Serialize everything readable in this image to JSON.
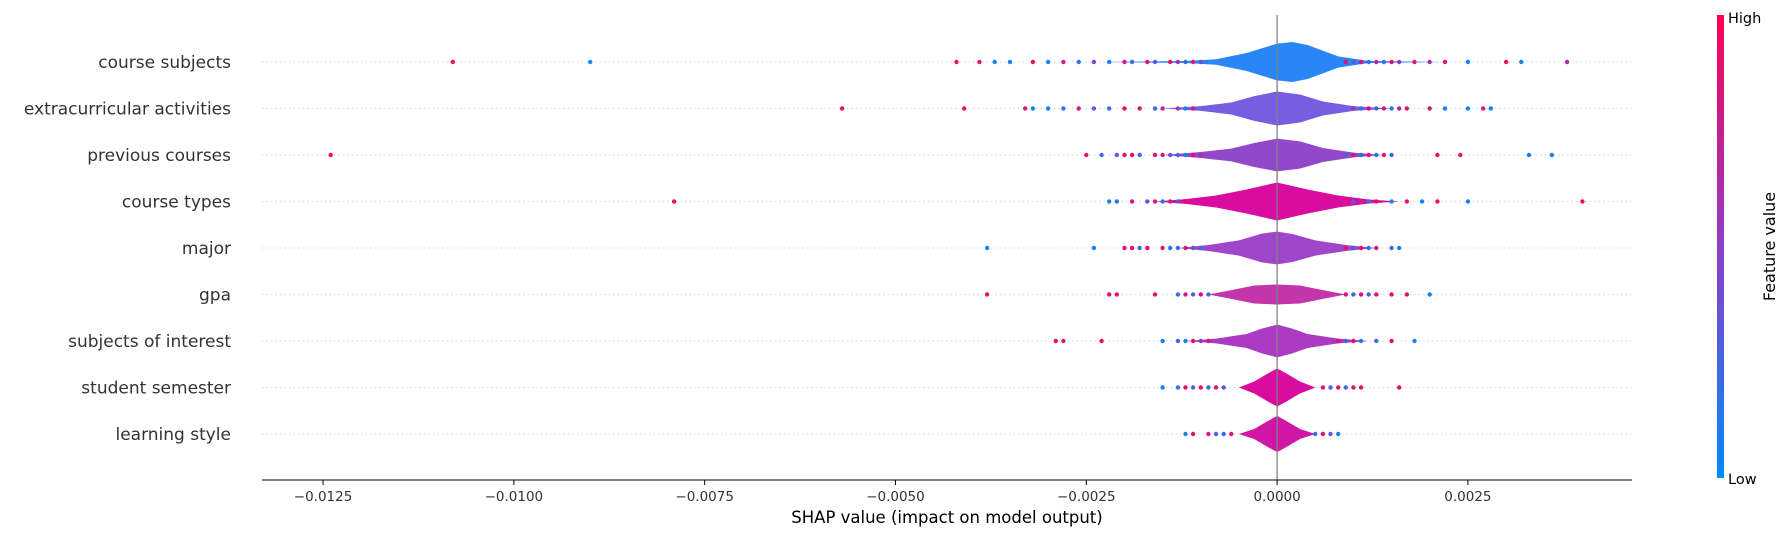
{
  "chart_data": {
    "type": "scatter",
    "subtype": "shap-violin-summary",
    "xlabel": "SHAP value (impact on model output)",
    "xlim": [
      -0.0133,
      0.00465
    ],
    "xticks": [
      -0.0125,
      -0.01,
      -0.0075,
      -0.005,
      -0.0025,
      0.0,
      0.0025
    ],
    "xtick_labels": [
      "−0.0125",
      "−0.0100",
      "−0.0075",
      "−0.0050",
      "−0.0025",
      "0.0000",
      "0.0025"
    ],
    "zero_line": 0.0,
    "colorbar": {
      "title": "Feature value",
      "high_label": "High",
      "low_label": "Low",
      "high_color": "#ff0052",
      "low_color": "#008bfb"
    },
    "features": [
      {
        "name": "course subjects",
        "violin_color": "#1e7ff5",
        "violin": [
          [
            -0.0023,
            0.0
          ],
          [
            -0.0012,
            0.05
          ],
          [
            -0.0008,
            0.14
          ],
          [
            -0.0004,
            0.45
          ],
          [
            0.0,
            0.92
          ],
          [
            0.0002,
            1.0
          ],
          [
            0.0004,
            0.85
          ],
          [
            0.0008,
            0.28
          ],
          [
            0.0012,
            0.05
          ],
          [
            0.0022,
            0.0
          ]
        ],
        "points": [
          [
            -0.0108,
            0.9
          ],
          [
            -0.009,
            0.0
          ],
          [
            -0.0042,
            0.9
          ],
          [
            -0.0039,
            0.85
          ],
          [
            -0.0037,
            0.1
          ],
          [
            -0.0035,
            0.05
          ],
          [
            -0.0032,
            0.9
          ],
          [
            -0.003,
            0.1
          ],
          [
            -0.0028,
            0.8
          ],
          [
            -0.0026,
            0.15
          ],
          [
            -0.0024,
            0.5
          ],
          [
            -0.0022,
            0.1
          ],
          [
            -0.002,
            0.8
          ],
          [
            -0.0019,
            0.2
          ],
          [
            -0.0017,
            0.9
          ],
          [
            -0.0016,
            0.3
          ],
          [
            -0.0014,
            0.9
          ],
          [
            -0.0013,
            0.6
          ],
          [
            -0.0012,
            0.2
          ],
          [
            -0.0011,
            0.85
          ],
          [
            -0.001,
            0.4
          ],
          [
            0.0009,
            0.85
          ],
          [
            0.001,
            0.3
          ],
          [
            0.0011,
            0.9
          ],
          [
            0.0012,
            0.2
          ],
          [
            0.0013,
            0.7
          ],
          [
            0.0014,
            0.15
          ],
          [
            0.0015,
            0.95
          ],
          [
            0.0016,
            0.5
          ],
          [
            0.0018,
            0.85
          ],
          [
            0.002,
            0.6
          ],
          [
            0.0022,
            0.8
          ],
          [
            0.0025,
            0.05
          ],
          [
            0.003,
            0.9
          ],
          [
            0.0032,
            0.05
          ],
          [
            0.0038,
            0.7
          ]
        ]
      },
      {
        "name": "extracurricular activities",
        "violin_color": "#6f54e0",
        "violin": [
          [
            -0.0015,
            0.0
          ],
          [
            -0.001,
            0.12
          ],
          [
            -0.0006,
            0.3
          ],
          [
            -0.0003,
            0.62
          ],
          [
            0.0,
            0.85
          ],
          [
            0.0003,
            0.7
          ],
          [
            0.0006,
            0.35
          ],
          [
            0.001,
            0.12
          ],
          [
            0.0015,
            0.0
          ]
        ],
        "points": [
          [
            -0.0057,
            0.9
          ],
          [
            -0.0041,
            0.9
          ],
          [
            -0.0033,
            0.85
          ],
          [
            -0.0032,
            0.1
          ],
          [
            -0.003,
            0.05
          ],
          [
            -0.0028,
            0.15
          ],
          [
            -0.0026,
            0.8
          ],
          [
            -0.0024,
            0.3
          ],
          [
            -0.0022,
            0.2
          ],
          [
            -0.002,
            0.9
          ],
          [
            -0.0018,
            0.85
          ],
          [
            -0.0016,
            0.2
          ],
          [
            -0.0015,
            0.7
          ],
          [
            -0.0013,
            0.5
          ],
          [
            -0.0012,
            0.15
          ],
          [
            -0.0011,
            0.8
          ],
          [
            0.001,
            0.6
          ],
          [
            0.0011,
            0.2
          ],
          [
            0.0012,
            0.9
          ],
          [
            0.0013,
            0.3
          ],
          [
            0.0014,
            0.8
          ],
          [
            0.0015,
            0.2
          ],
          [
            0.0016,
            0.7
          ],
          [
            0.0017,
            0.9
          ],
          [
            0.002,
            0.85
          ],
          [
            0.0022,
            0.1
          ],
          [
            0.0025,
            0.05
          ],
          [
            0.0027,
            0.8
          ],
          [
            0.0028,
            0.1
          ]
        ]
      },
      {
        "name": "previous courses",
        "violin_color": "#8c3ec8",
        "violin": [
          [
            -0.0015,
            0.0
          ],
          [
            -0.001,
            0.15
          ],
          [
            -0.0006,
            0.32
          ],
          [
            -0.0003,
            0.6
          ],
          [
            0.0,
            0.82
          ],
          [
            0.0003,
            0.68
          ],
          [
            0.0006,
            0.35
          ],
          [
            0.001,
            0.12
          ],
          [
            0.0014,
            0.0
          ]
        ],
        "points": [
          [
            -0.0124,
            0.95
          ],
          [
            -0.0025,
            0.85
          ],
          [
            -0.0023,
            0.2
          ],
          [
            -0.0021,
            0.3
          ],
          [
            -0.002,
            0.85
          ],
          [
            -0.0019,
            0.9
          ],
          [
            -0.0018,
            0.15
          ],
          [
            -0.0016,
            0.9
          ],
          [
            -0.0015,
            0.8
          ],
          [
            -0.0014,
            0.4
          ],
          [
            -0.0013,
            0.2
          ],
          [
            -0.0012,
            0.1
          ],
          [
            -0.0011,
            0.85
          ],
          [
            -0.001,
            0.7
          ],
          [
            0.0009,
            0.3
          ],
          [
            0.001,
            0.85
          ],
          [
            0.0011,
            0.2
          ],
          [
            0.0012,
            0.9
          ],
          [
            0.0013,
            0.1
          ],
          [
            0.0014,
            0.85
          ],
          [
            0.0015,
            0.2
          ],
          [
            0.0021,
            0.9
          ],
          [
            0.0024,
            0.85
          ],
          [
            0.0033,
            0.05
          ],
          [
            0.0036,
            0.1
          ]
        ]
      },
      {
        "name": "course types",
        "violin_color": "#d6009a",
        "violin": [
          [
            -0.0016,
            0.0
          ],
          [
            -0.0012,
            0.12
          ],
          [
            -0.0008,
            0.3
          ],
          [
            -0.0004,
            0.6
          ],
          [
            0.0,
            0.95
          ],
          [
            0.0004,
            0.6
          ],
          [
            0.0008,
            0.3
          ],
          [
            0.0012,
            0.1
          ],
          [
            0.0016,
            0.0
          ]
        ],
        "points": [
          [
            -0.0079,
            0.9
          ],
          [
            -0.0022,
            0.1
          ],
          [
            -0.0021,
            0.2
          ],
          [
            -0.0019,
            0.85
          ],
          [
            -0.0017,
            0.3
          ],
          [
            -0.0016,
            0.85
          ],
          [
            -0.0015,
            0.2
          ],
          [
            -0.0014,
            0.8
          ],
          [
            -0.0013,
            0.4
          ],
          [
            -0.0012,
            0.9
          ],
          [
            0.0009,
            0.85
          ],
          [
            0.001,
            0.3
          ],
          [
            0.0011,
            0.8
          ],
          [
            0.0012,
            0.2
          ],
          [
            0.0013,
            0.9
          ],
          [
            0.0015,
            0.1
          ],
          [
            0.0017,
            0.85
          ],
          [
            0.0019,
            0.05
          ],
          [
            0.0021,
            0.95
          ],
          [
            0.0025,
            0.1
          ],
          [
            0.004,
            0.95
          ]
        ]
      },
      {
        "name": "major",
        "violin_color": "#9a3cc7",
        "violin": [
          [
            -0.0013,
            0.0
          ],
          [
            -0.0009,
            0.15
          ],
          [
            -0.0005,
            0.38
          ],
          [
            -0.0002,
            0.72
          ],
          [
            0.0,
            0.82
          ],
          [
            0.0002,
            0.7
          ],
          [
            0.0005,
            0.38
          ],
          [
            0.0009,
            0.15
          ],
          [
            0.0013,
            0.0
          ]
        ],
        "points": [
          [
            -0.0038,
            0.05
          ],
          [
            -0.0024,
            0.1
          ],
          [
            -0.002,
            0.85
          ],
          [
            -0.0019,
            0.9
          ],
          [
            -0.0018,
            0.2
          ],
          [
            -0.0017,
            0.9
          ],
          [
            -0.0015,
            0.85
          ],
          [
            -0.0014,
            0.15
          ],
          [
            -0.0013,
            0.2
          ],
          [
            -0.0012,
            0.85
          ],
          [
            -0.0011,
            0.4
          ],
          [
            -0.001,
            0.2
          ],
          [
            0.0009,
            0.85
          ],
          [
            0.001,
            0.3
          ],
          [
            0.0011,
            0.9
          ],
          [
            0.0012,
            0.2
          ],
          [
            0.0013,
            0.8
          ],
          [
            0.0015,
            0.2
          ],
          [
            0.0016,
            0.1
          ]
        ]
      },
      {
        "name": "gpa",
        "violin_color": "#c02aa6",
        "violin": [
          [
            -0.0009,
            0.0
          ],
          [
            -0.0006,
            0.22
          ],
          [
            -0.0003,
            0.45
          ],
          [
            0.0,
            0.5
          ],
          [
            0.0003,
            0.45
          ],
          [
            0.0006,
            0.22
          ],
          [
            0.0009,
            0.0
          ]
        ],
        "points": [
          [
            -0.0038,
            0.9
          ],
          [
            -0.0022,
            0.9
          ],
          [
            -0.0021,
            0.85
          ],
          [
            -0.0016,
            0.9
          ],
          [
            -0.0013,
            0.2
          ],
          [
            -0.0012,
            0.85
          ],
          [
            -0.0011,
            0.3
          ],
          [
            -0.001,
            0.85
          ],
          [
            -0.0009,
            0.2
          ],
          [
            0.0009,
            0.85
          ],
          [
            0.001,
            0.2
          ],
          [
            0.0011,
            0.9
          ],
          [
            0.0012,
            0.3
          ],
          [
            0.0013,
            0.85
          ],
          [
            0.0015,
            0.9
          ],
          [
            0.0017,
            0.9
          ],
          [
            0.002,
            0.05
          ]
        ]
      },
      {
        "name": "subjects of interest",
        "violin_color": "#a630c0",
        "violin": [
          [
            -0.0012,
            0.0
          ],
          [
            -0.0008,
            0.12
          ],
          [
            -0.0004,
            0.35
          ],
          [
            -0.0002,
            0.62
          ],
          [
            0.0,
            0.82
          ],
          [
            0.0002,
            0.62
          ],
          [
            0.0004,
            0.35
          ],
          [
            0.0008,
            0.12
          ],
          [
            0.0012,
            0.0
          ]
        ],
        "points": [
          [
            -0.0029,
            0.9
          ],
          [
            -0.0028,
            0.85
          ],
          [
            -0.0023,
            0.9
          ],
          [
            -0.0015,
            0.1
          ],
          [
            -0.0013,
            0.2
          ],
          [
            -0.0012,
            0.1
          ],
          [
            -0.0011,
            0.85
          ],
          [
            -0.001,
            0.5
          ],
          [
            -0.0009,
            0.85
          ],
          [
            0.0008,
            0.85
          ],
          [
            0.0009,
            0.3
          ],
          [
            0.001,
            0.9
          ],
          [
            0.0011,
            0.1
          ],
          [
            0.0013,
            0.2
          ],
          [
            0.0015,
            0.9
          ],
          [
            0.0018,
            0.1
          ]
        ]
      },
      {
        "name": "student semester",
        "violin_color": "#d6009a",
        "violin": [
          [
            -0.0005,
            0.0
          ],
          [
            -0.0003,
            0.3
          ],
          [
            -0.0001,
            0.75
          ],
          [
            0.0,
            0.95
          ],
          [
            0.0001,
            0.75
          ],
          [
            0.0003,
            0.3
          ],
          [
            0.0005,
            0.0
          ]
        ],
        "points": [
          [
            -0.0015,
            0.1
          ],
          [
            -0.0013,
            0.2
          ],
          [
            -0.0012,
            0.9
          ],
          [
            -0.0011,
            0.3
          ],
          [
            -0.001,
            0.85
          ],
          [
            -0.0009,
            0.2
          ],
          [
            -0.0008,
            0.9
          ],
          [
            -0.0007,
            0.4
          ],
          [
            0.0006,
            0.85
          ],
          [
            0.0007,
            0.3
          ],
          [
            0.0008,
            0.9
          ],
          [
            0.0009,
            0.2
          ],
          [
            0.001,
            0.85
          ],
          [
            0.0011,
            0.9
          ],
          [
            0.0016,
            0.9
          ]
        ]
      },
      {
        "name": "learning style",
        "violin_color": "#cc0aa0",
        "violin": [
          [
            -0.0005,
            0.0
          ],
          [
            -0.0003,
            0.25
          ],
          [
            -0.0001,
            0.7
          ],
          [
            0.0,
            0.9
          ],
          [
            0.0001,
            0.7
          ],
          [
            0.0003,
            0.25
          ],
          [
            0.0005,
            0.0
          ]
        ],
        "points": [
          [
            -0.0012,
            0.1
          ],
          [
            -0.0011,
            0.9
          ],
          [
            -0.0009,
            0.85
          ],
          [
            -0.0008,
            0.3
          ],
          [
            -0.0007,
            0.2
          ],
          [
            -0.0006,
            0.85
          ],
          [
            0.0005,
            0.2
          ],
          [
            0.0006,
            0.85
          ],
          [
            0.0007,
            0.3
          ],
          [
            0.0008,
            0.1
          ]
        ]
      }
    ]
  }
}
